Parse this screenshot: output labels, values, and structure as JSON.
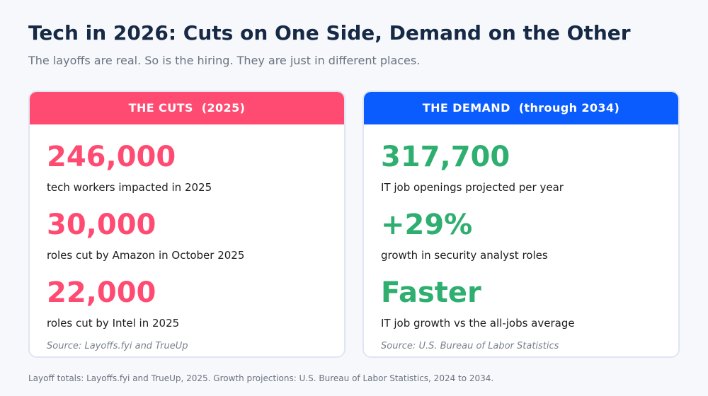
{
  "title": "Tech in 2026: Cuts on One Side, Demand on the Other",
  "subtitle": "The layoffs are real. So is the hiring. They are just in different places.",
  "colors": {
    "cuts_accent": "#ff4b72",
    "demand_header": "#0b5cff",
    "demand_value": "#2eaf70"
  },
  "cuts": {
    "header": "THE CUTS  (2025)",
    "stats": [
      {
        "value": "246,000",
        "desc": "tech workers impacted in 2025"
      },
      {
        "value": "30,000",
        "desc": "roles cut by Amazon in October 2025"
      },
      {
        "value": "22,000",
        "desc": "roles cut by Intel in 2025"
      }
    ],
    "source": "Source: Layoffs.fyi and TrueUp"
  },
  "demand": {
    "header": "THE DEMAND  (through 2034)",
    "stats": [
      {
        "value": "317,700",
        "desc": "IT job openings projected per year"
      },
      {
        "value": "+29%",
        "desc": "growth in security analyst roles"
      },
      {
        "value": "Faster",
        "desc": "IT job growth vs the all-jobs average"
      }
    ],
    "source": "Source: U.S. Bureau of Labor Statistics"
  },
  "footer": "Layoff totals: Layoffs.fyi and TrueUp, 2025. Growth projections: U.S. Bureau of Labor Statistics, 2024 to 2034."
}
